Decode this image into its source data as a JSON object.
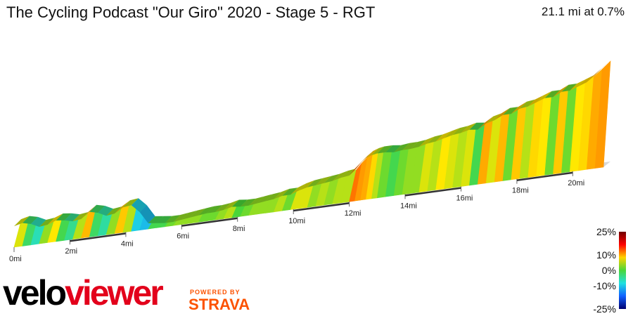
{
  "header": {
    "title": "The Cycling Podcast \"Our Giro\" 2020 - Stage 5 - RGT",
    "summary": "21.1 mi at 0.7%"
  },
  "branding": {
    "logo_part1": "velo",
    "logo_part2": "viewer",
    "powered_by": "POWERED BY",
    "strava": "STRAVA",
    "colors": {
      "veloviewer_red": "#e3001b",
      "strava_orange": "#fc5200"
    }
  },
  "chart_data": {
    "type": "area",
    "title": "The Cycling Podcast \"Our Giro\" 2020 - Stage 5 - RGT",
    "xlabel": "",
    "ylabel": "",
    "x_unit": "mi",
    "xlim": [
      0,
      21.1
    ],
    "x_ticks": [
      0,
      2,
      4,
      6,
      8,
      10,
      12,
      14,
      16,
      18,
      20
    ],
    "x_tick_labels": [
      "0mi",
      "2mi",
      "4mi",
      "6mi",
      "8mi",
      "10mi",
      "12mi",
      "14mi",
      "16mi",
      "18mi",
      "20mi"
    ],
    "total_distance_mi": 21.1,
    "average_gradient_pct": 0.7,
    "profile": {
      "distance_mi": [
        0,
        0.3,
        0.6,
        0.9,
        1.2,
        1.5,
        1.8,
        2.1,
        2.4,
        2.7,
        3.0,
        3.3,
        3.6,
        3.9,
        4.2,
        4.5,
        4.8,
        5.1,
        5.4,
        5.7,
        6.0,
        6.3,
        6.6,
        6.9,
        7.2,
        7.5,
        7.8,
        8.1,
        8.4,
        8.7,
        9.0,
        9.3,
        9.6,
        9.9,
        10.2,
        10.5,
        10.8,
        11.1,
        11.4,
        11.7,
        12.0,
        12.2,
        12.4,
        12.6,
        12.8,
        13.0,
        13.3,
        13.6,
        13.9,
        14.2,
        14.5,
        14.8,
        15.1,
        15.4,
        15.7,
        16.0,
        16.3,
        16.6,
        16.9,
        17.2,
        17.5,
        17.8,
        18.1,
        18.4,
        18.7,
        19.0,
        19.3,
        19.6,
        19.9,
        20.2,
        20.5,
        20.8,
        21.1
      ],
      "relative_height": [
        0.22,
        0.24,
        0.22,
        0.18,
        0.19,
        0.22,
        0.21,
        0.19,
        0.2,
        0.26,
        0.24,
        0.2,
        0.21,
        0.26,
        0.27,
        0.19,
        0.07,
        0.06,
        0.05,
        0.05,
        0.06,
        0.07,
        0.08,
        0.09,
        0.09,
        0.1,
        0.12,
        0.11,
        0.11,
        0.12,
        0.13,
        0.14,
        0.16,
        0.16,
        0.19,
        0.21,
        0.22,
        0.23,
        0.24,
        0.26,
        0.27,
        0.33,
        0.38,
        0.42,
        0.44,
        0.45,
        0.45,
        0.44,
        0.45,
        0.45,
        0.46,
        0.48,
        0.49,
        0.51,
        0.53,
        0.54,
        0.56,
        0.55,
        0.6,
        0.62,
        0.66,
        0.66,
        0.7,
        0.71,
        0.74,
        0.77,
        0.77,
        0.81,
        0.81,
        0.84,
        0.87,
        0.93,
        1.0
      ],
      "gradient_pct": [
        3,
        4,
        -2,
        -6,
        2,
        5,
        -1,
        -4,
        3,
        8,
        -2,
        -5,
        2,
        7,
        3,
        -9,
        -10,
        -1,
        -1,
        1,
        2,
        2,
        2,
        1,
        1,
        2,
        3,
        0,
        1,
        2,
        2,
        2,
        3,
        1,
        4,
        4,
        2,
        3,
        2,
        3,
        3,
        12,
        10,
        9,
        6,
        3,
        1,
        -1,
        1,
        2,
        2,
        4,
        3,
        5,
        4,
        3,
        4,
        -1,
        9,
        4,
        8,
        1,
        7,
        3,
        6,
        5,
        1,
        7,
        1,
        5,
        6,
        9,
        10
      ]
    },
    "legend": {
      "placement": "right",
      "labels": [
        "25%",
        "10%",
        "0%",
        "-10%",
        "-25%"
      ],
      "values": [
        25,
        10,
        0,
        -10,
        -25
      ],
      "colors": [
        "#700000",
        "#ff0000",
        "#ffd400",
        "#49d639",
        "#20e0e0",
        "#1060ff",
        "#00006e"
      ]
    }
  }
}
